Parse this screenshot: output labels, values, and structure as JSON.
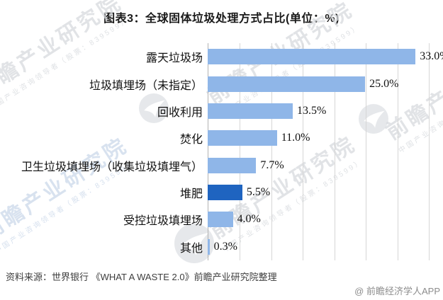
{
  "title": "图表3：全球固体垃圾处理方式占比(单位：%)",
  "source": "资料来源：世界银行 《WHAT A WASTE 2.0》前瞻产业研究院整理",
  "credit": "@ 前瞻经济学人APP",
  "watermark": {
    "brand_large": "前瞻产业研究院",
    "brand_small": "中国产业咨询领导者（股票：839599）"
  },
  "colors": {
    "bar": "#8FB6E8",
    "bar_highlight": "#1F64C0",
    "gridline": "#D6D6D6",
    "axis": "#B3B3B3"
  },
  "chart_data": {
    "type": "bar",
    "orientation": "horizontal",
    "title": "图表3：全球固体垃圾处理方式占比(单位：%)",
    "unit": "%",
    "categories": [
      "露天垃圾场",
      "垃圾填埋场（未指定）",
      "回收利用",
      "焚化",
      "卫生垃圾填埋场（收集垃圾填埋气）",
      "堆肥",
      "受控垃圾填埋场",
      "其他"
    ],
    "values": [
      33.0,
      25.0,
      13.5,
      11.0,
      7.7,
      5.5,
      4.0,
      0.3
    ],
    "value_labels": [
      "33.0%",
      "25.0%",
      "13.5%",
      "11.0%",
      "7.7%",
      "5.5%",
      "4.0%",
      "0.3%"
    ],
    "highlighted_category": "堆肥",
    "xlim": [
      0,
      35
    ],
    "gridline_step": 5,
    "grid": true,
    "legend": false
  }
}
